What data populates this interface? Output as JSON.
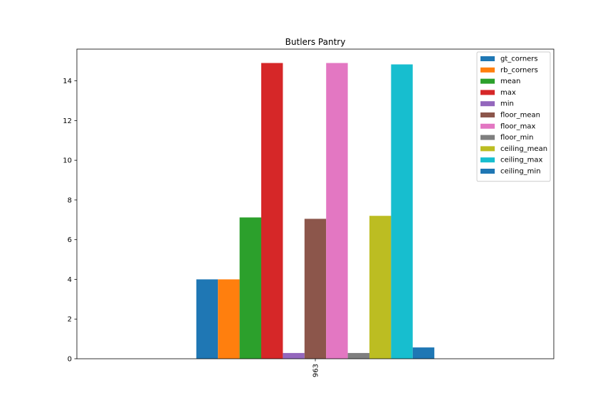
{
  "chart_data": {
    "type": "bar",
    "title": "Butlers Pantry",
    "xlabel": "",
    "ylabel": "",
    "categories": [
      "963"
    ],
    "ylim": [
      0,
      15.6
    ],
    "yticks": [
      0,
      2,
      4,
      6,
      8,
      10,
      12,
      14
    ],
    "grid": false,
    "legend_position": "top-right",
    "series": [
      {
        "name": "gt_corners",
        "values": [
          4.0
        ],
        "color": "#1f77b4"
      },
      {
        "name": "rb_corners",
        "values": [
          4.0
        ],
        "color": "#ff7f0e"
      },
      {
        "name": "mean",
        "values": [
          7.12
        ],
        "color": "#2ca02c"
      },
      {
        "name": "max",
        "values": [
          14.9
        ],
        "color": "#d62728"
      },
      {
        "name": "min",
        "values": [
          0.29
        ],
        "color": "#9467bd"
      },
      {
        "name": "floor_mean",
        "values": [
          7.05
        ],
        "color": "#8c564b"
      },
      {
        "name": "floor_max",
        "values": [
          14.9
        ],
        "color": "#e377c2"
      },
      {
        "name": "floor_min",
        "values": [
          0.29
        ],
        "color": "#7f7f7f"
      },
      {
        "name": "ceiling_mean",
        "values": [
          7.2
        ],
        "color": "#bcbd22"
      },
      {
        "name": "ceiling_max",
        "values": [
          14.83
        ],
        "color": "#17becf"
      },
      {
        "name": "ceiling_min",
        "values": [
          0.57
        ],
        "color": "#1f77b4"
      }
    ]
  }
}
